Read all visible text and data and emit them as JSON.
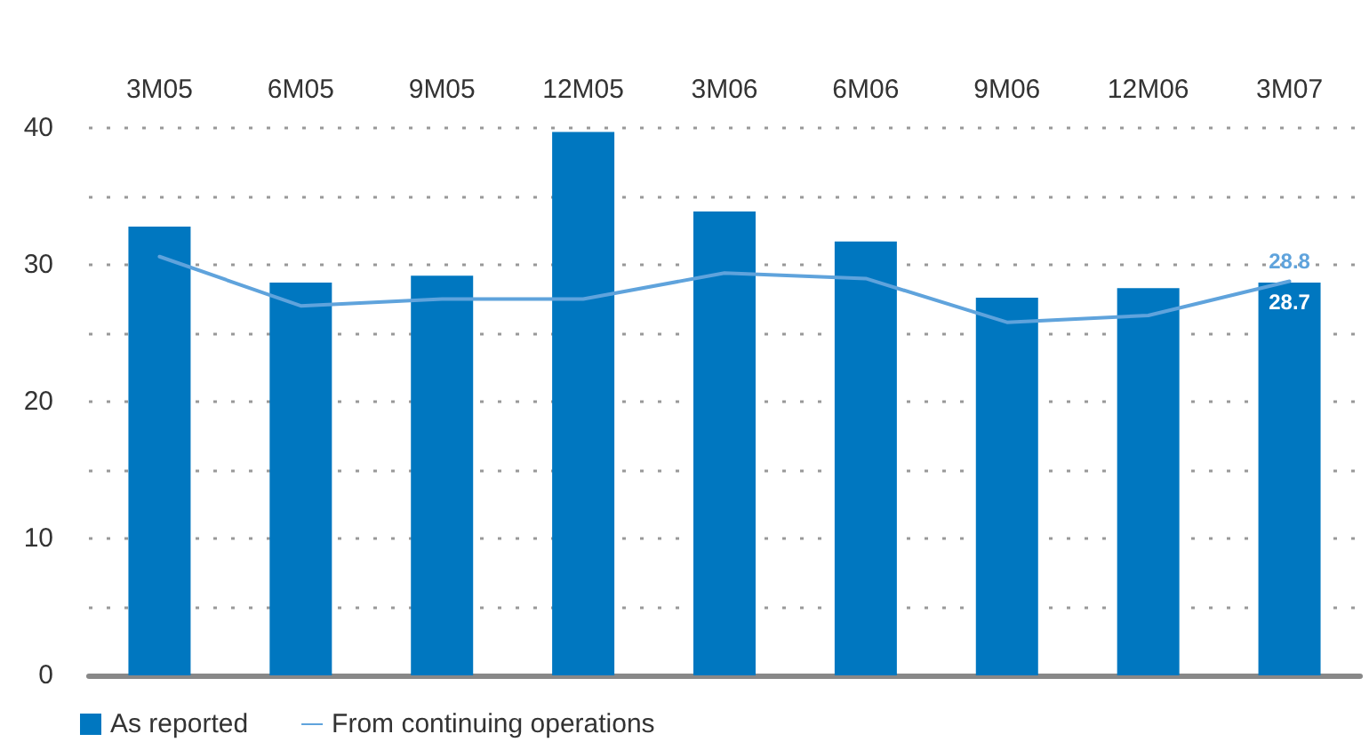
{
  "chart_data": {
    "type": "bar",
    "categories": [
      "3M05",
      "6M05",
      "9M05",
      "12M05",
      "3M06",
      "6M06",
      "9M06",
      "12M06",
      "3M07"
    ],
    "series": [
      {
        "name": "As reported",
        "color": "#0077c0",
        "values": [
          32.8,
          28.7,
          29.2,
          39.7,
          33.9,
          31.7,
          27.6,
          28.3,
          28.7
        ],
        "value_labels": [
          null,
          null,
          null,
          null,
          null,
          null,
          null,
          null,
          "28.7"
        ]
      },
      {
        "name": "From continuing operations",
        "type": "line",
        "color": "#5fa3dc",
        "values": [
          30.6,
          27.0,
          27.5,
          27.5,
          29.4,
          29.0,
          25.8,
          26.3,
          28.8
        ],
        "value_labels": [
          null,
          null,
          null,
          null,
          null,
          null,
          null,
          null,
          "28.8"
        ]
      }
    ],
    "ylim": [
      0,
      40
    ],
    "yticks": [
      0,
      {
        "value": 5,
        "label": null
      },
      10,
      {
        "value": 15,
        "label": null
      },
      20,
      {
        "value": 25,
        "label": null
      },
      30,
      {
        "value": 35,
        "label": null
      },
      40
    ],
    "grid": "y",
    "legend": "bottom left",
    "marker": "none",
    "line_style": "solid"
  }
}
